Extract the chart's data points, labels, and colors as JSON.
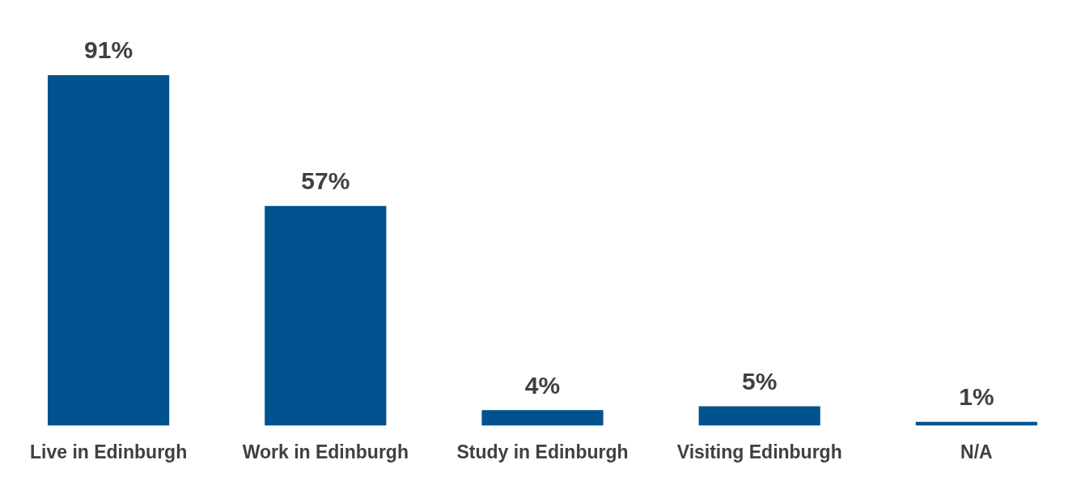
{
  "chart_data": {
    "type": "bar",
    "categories": [
      "Live in Edinburgh",
      "Work in Edinburgh",
      "Study in Edinburgh",
      "Visiting Edinburgh",
      "N/A"
    ],
    "values": [
      91,
      57,
      4,
      5,
      1
    ],
    "value_labels": [
      "91%",
      "57%",
      "4%",
      "5%",
      "1%"
    ],
    "color": "#00538f",
    "grid": false,
    "legend": false
  }
}
